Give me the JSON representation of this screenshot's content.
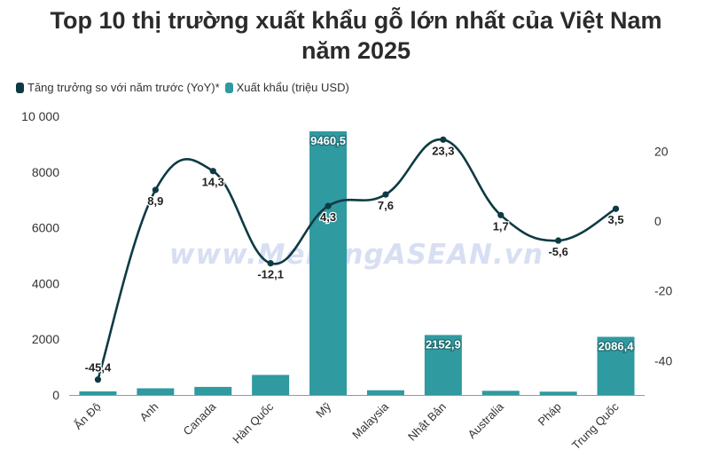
{
  "title_line1": "Top 10 thị trường xuất khẩu gỗ lớn nhất của Việt Nam",
  "title_line2": "năm 2025",
  "watermark": "www.MekongASEAN.vn",
  "legend": [
    {
      "label": "Tăng trưởng so với năm trước (YoY)*",
      "color": "#0e3b43"
    },
    {
      "label": "Xuất khẩu (triệu USD)",
      "color": "#2f9aa0"
    }
  ],
  "chart_data": {
    "type": "bar",
    "categories": [
      "Ấn Độ",
      "Anh",
      "Canada",
      "Hàn Quốc",
      "Mỹ",
      "Malaysia",
      "Nhật Bản",
      "Australia",
      "Pháp",
      "Trung Quốc"
    ],
    "series": [
      {
        "name": "Xuất khẩu (triệu USD)",
        "type": "bar",
        "axis": "left",
        "values": [
          130,
          240,
          290,
          720,
          9460.5,
          170,
          2152.9,
          150,
          120,
          2086.4
        ],
        "labels": [
          "",
          "",
          "",
          "",
          "9460,5",
          "",
          "2152,9",
          "",
          "",
          "2086,4"
        ],
        "color": "#2f9aa0"
      },
      {
        "name": "Tăng trưởng so với năm trước (YoY)*",
        "type": "line",
        "axis": "right",
        "values": [
          -45.4,
          8.9,
          14.3,
          -12.1,
          4.3,
          7.6,
          23.3,
          1.7,
          -5.6,
          3.5
        ],
        "labels": [
          "-45,4",
          "8,9",
          "14,3",
          "-12,1",
          "4,3",
          "7,6",
          "23,3",
          "1,7",
          "-5,6",
          "3,5"
        ],
        "color": "#0e3b43"
      }
    ],
    "y_left": {
      "min": 0,
      "max": 10000,
      "ticks": [
        0,
        2000,
        4000,
        6000,
        8000,
        10000
      ],
      "tick_labels": [
        "0",
        "2000",
        "4000",
        "6000",
        "8000",
        "10 000"
      ]
    },
    "y_right": {
      "min": -50,
      "max": 30,
      "ticks": [
        -40,
        -20,
        0,
        20
      ],
      "tick_labels": [
        "-40",
        "-20",
        "0",
        "20"
      ]
    },
    "grid": false,
    "legend_position": "top-left"
  }
}
